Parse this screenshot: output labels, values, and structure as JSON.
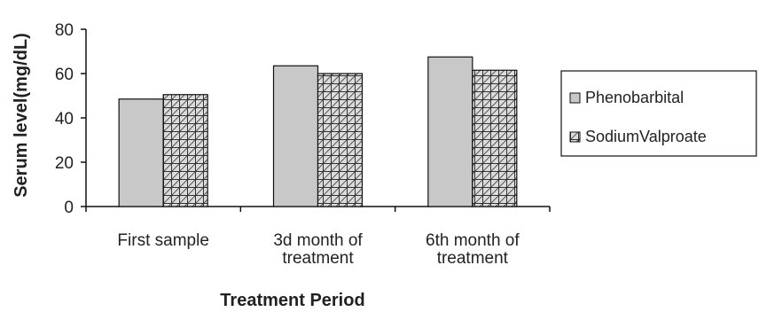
{
  "chart_data": {
    "type": "bar",
    "categories": [
      [
        "First sample"
      ],
      [
        "3d month of",
        "treatment"
      ],
      [
        "6th month of",
        "treatment"
      ]
    ],
    "series": [
      {
        "name": "Phenobarbital",
        "values": [
          48.5,
          63.5,
          67.5
        ],
        "fill": "#c8c8c8",
        "pattern": "solid"
      },
      {
        "name": "Sodium Valproate",
        "values": [
          50.5,
          60.0,
          61.5
        ],
        "fill": "#d9d9d9",
        "pattern": "crosshatch"
      }
    ],
    "xlabel": "Treatment Period",
    "ylabel": "Serum level(mg/dL)",
    "ylim": [
      0,
      80
    ],
    "yticks": [
      0,
      20,
      40,
      60,
      80
    ],
    "grid": false,
    "legend": "right",
    "legend_labels": [
      "Phenobarbital",
      "SodiumValproate"
    ]
  }
}
